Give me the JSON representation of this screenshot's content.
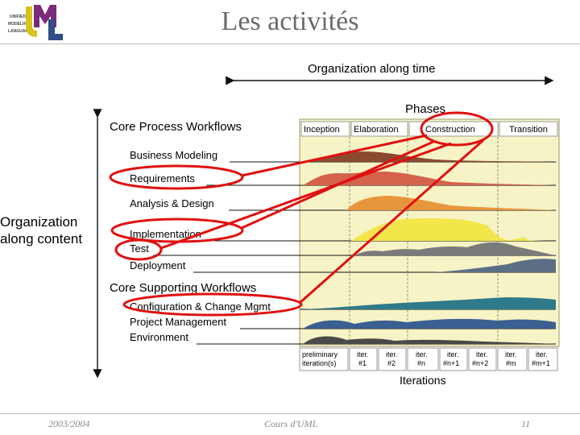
{
  "slide": {
    "title": "Les activités",
    "footer_date": "2003/2004",
    "footer_course": "Cours d'UML",
    "footer_page": "11"
  },
  "logo": {
    "lines": [
      "UNIFIED",
      "MODELING",
      "LANGUAGE"
    ],
    "letters": "UML",
    "colors": {
      "u": "#d9c21a",
      "m": "#7a2a7a",
      "l": "#2f4f86"
    }
  },
  "diagram": {
    "time_axis_label": "Organization along time",
    "content_axis_label": [
      "Organization",
      "along content"
    ],
    "phases_label": "Phases",
    "core_process_label": "Core Process Workflows",
    "core_supporting_label": "Core Supporting Workflows",
    "iterations_label": "Iterations",
    "phases": [
      "Inception",
      "Elaboration",
      "Construction",
      "Transition"
    ],
    "workflows": [
      {
        "name": "Business Modeling",
        "color": "#8b4a2f"
      },
      {
        "name": "Requirements",
        "color": "#d5624a"
      },
      {
        "name": "Analysis & Design",
        "color": "#e8963e"
      },
      {
        "name": "Implementation",
        "color": "#f2e64a"
      },
      {
        "name": "Test",
        "color": "#7a7a7a"
      },
      {
        "name": "Deployment",
        "color": "#5a6f84"
      },
      {
        "name": "Configuration & Change Mgmt",
        "color": "#2f7a8a"
      },
      {
        "name": "Project Management",
        "color": "#3a5f90"
      },
      {
        "name": "Environment",
        "color": "#4a4a4a"
      }
    ],
    "iterations": [
      [
        "preliminary",
        "iteration(s)"
      ],
      [
        "iter.",
        "#1"
      ],
      [
        "iter.",
        "#2"
      ],
      [
        "iter.",
        "#n"
      ],
      [
        "iter.",
        "#n+1"
      ],
      [
        "iter.",
        "#n+2"
      ],
      [
        "iter.",
        "#m"
      ],
      [
        "iter.",
        "#m+1"
      ]
    ],
    "colors": {
      "panel": "#f6f3c6",
      "highlight": "#e01010",
      "axis": "#111111"
    }
  }
}
